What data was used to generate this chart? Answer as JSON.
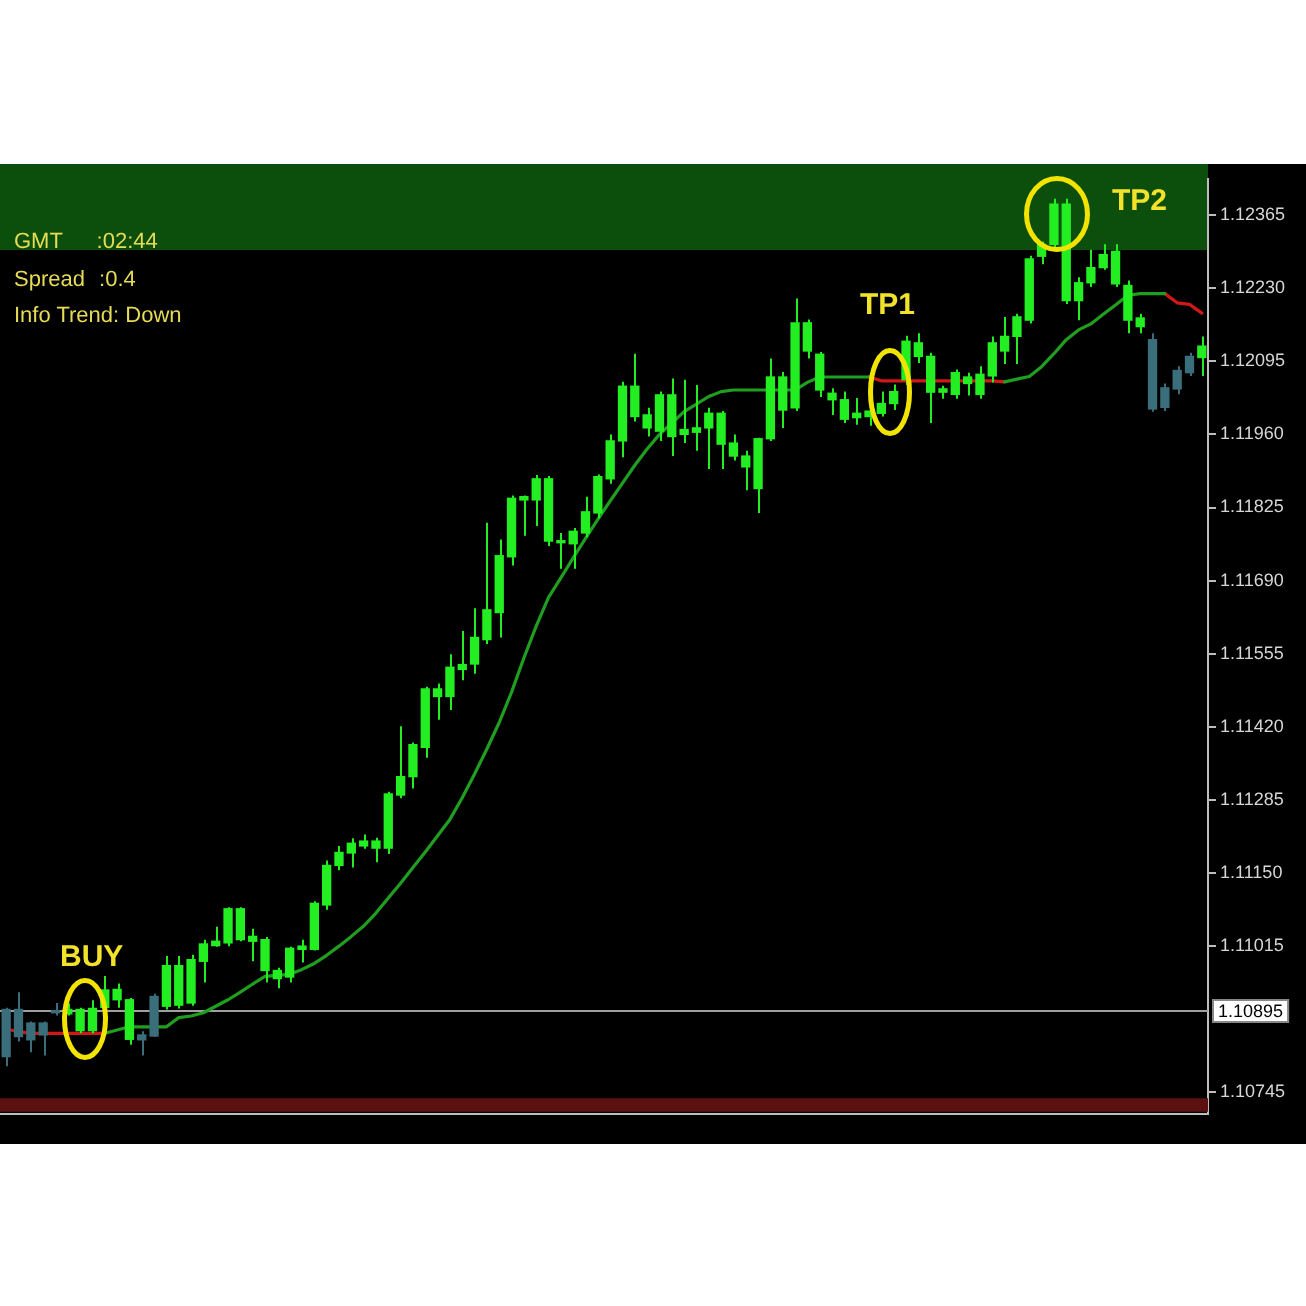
{
  "chart_data": {
    "type": "candlestick",
    "categories": [
      null,
      null,
      null,
      null,
      null,
      null,
      null,
      null,
      null,
      null,
      null,
      null,
      null,
      null,
      null,
      null,
      null,
      null,
      null,
      null,
      null,
      null,
      null,
      null,
      null,
      null,
      null,
      null,
      null,
      null,
      null,
      null,
      null,
      null,
      null,
      null,
      null,
      null,
      null,
      null,
      null,
      null,
      null,
      null,
      null,
      null,
      null,
      null,
      null,
      null,
      null,
      null,
      null,
      null,
      null,
      null,
      null,
      null,
      null,
      null,
      null,
      null,
      null,
      null,
      null,
      null,
      null,
      null,
      null,
      null,
      null,
      null,
      null,
      null,
      null,
      null,
      null,
      null,
      null,
      null,
      null,
      null,
      null,
      null,
      null,
      null,
      null,
      null,
      null,
      null,
      null,
      null,
      null,
      null,
      null,
      null,
      null,
      null
    ],
    "ohlc": [
      [
        1.10898,
        1.10901,
        1.10793,
        1.10811
      ],
      [
        1.10898,
        1.1093,
        1.10839,
        1.10848
      ],
      [
        1.10873,
        1.10876,
        1.10819,
        1.10842
      ],
      [
        1.10873,
        1.10876,
        1.10813,
        1.10851
      ],
      [
        1.10896,
        1.1091,
        1.10887,
        1.10892
      ],
      [
        1.1089,
        1.10909,
        1.10887,
        1.10898
      ],
      [
        1.10859,
        1.10901,
        1.10854,
        1.10898
      ],
      [
        1.10859,
        1.10915,
        1.10854,
        1.109
      ],
      [
        1.10902,
        1.1096,
        1.10894,
        1.10934
      ],
      [
        1.10916,
        1.10946,
        1.10901,
        1.10935
      ],
      [
        1.10843,
        1.10919,
        1.10833,
        1.10916
      ],
      [
        1.10851,
        1.10858,
        1.10813,
        1.10842
      ],
      [
        1.10922,
        1.10927,
        1.10847,
        1.10849
      ],
      [
        1.10904,
        1.10997,
        1.10898,
        1.10979
      ],
      [
        1.10906,
        1.10997,
        1.109,
        1.10979
      ],
      [
        1.1091,
        1.10999,
        1.10905,
        1.1099
      ],
      [
        1.10987,
        1.11027,
        1.10948,
        1.11019
      ],
      [
        1.11016,
        1.11051,
        1.11014,
        1.11024
      ],
      [
        1.11021,
        1.11087,
        1.11015,
        1.11084
      ],
      [
        1.11027,
        1.11087,
        1.11024,
        1.11084
      ],
      [
        1.11024,
        1.11047,
        1.10987,
        1.11033
      ],
      [
        1.1097,
        1.11032,
        1.10948,
        1.11027
      ],
      [
        1.10955,
        1.10975,
        1.10937,
        1.1097
      ],
      [
        1.10958,
        1.11014,
        1.10948,
        1.11011
      ],
      [
        1.11009,
        1.11027,
        1.10985,
        1.11015
      ],
      [
        1.11009,
        1.11098,
        1.11007,
        1.11094
      ],
      [
        1.11091,
        1.11173,
        1.11082,
        1.11164
      ],
      [
        1.11164,
        1.112,
        1.11155,
        1.11188
      ],
      [
        1.11187,
        1.11214,
        1.1116,
        1.11205
      ],
      [
        1.112,
        1.11221,
        1.11195,
        1.11209
      ],
      [
        1.11196,
        1.11215,
        1.1117,
        1.11209
      ],
      [
        1.11196,
        1.113,
        1.11185,
        1.11296
      ],
      [
        1.11294,
        1.11421,
        1.11288,
        1.11328
      ],
      [
        1.11328,
        1.11391,
        1.11306,
        1.11387
      ],
      [
        1.11382,
        1.11494,
        1.11363,
        1.1149
      ],
      [
        1.11476,
        1.115,
        1.11433,
        1.1149
      ],
      [
        1.11476,
        1.11554,
        1.11451,
        1.1153
      ],
      [
        1.11526,
        1.11597,
        1.11506,
        1.11535
      ],
      [
        1.11536,
        1.11639,
        1.11518,
        1.11585
      ],
      [
        1.11581,
        1.11797,
        1.11573,
        1.11636
      ],
      [
        1.11631,
        1.11766,
        1.11585,
        1.11736
      ],
      [
        1.11734,
        1.11847,
        1.11718,
        1.11842
      ],
      [
        1.11839,
        1.11847,
        1.11773,
        1.11845
      ],
      [
        1.11839,
        1.11885,
        1.11791,
        1.11878
      ],
      [
        1.11763,
        1.11883,
        1.11754,
        1.11878
      ],
      [
        1.1176,
        1.11778,
        1.11712,
        1.11763
      ],
      [
        1.11758,
        1.11787,
        1.11712,
        1.11781
      ],
      [
        1.11778,
        1.11845,
        1.1177,
        1.11817
      ],
      [
        1.11815,
        1.11886,
        1.11805,
        1.11882
      ],
      [
        1.11878,
        1.1196,
        1.11869,
        1.11948
      ],
      [
        1.11948,
        1.12057,
        1.11918,
        1.12049
      ],
      [
        1.11993,
        1.12109,
        1.11984,
        1.12049
      ],
      [
        1.11972,
        1.12009,
        1.11956,
        1.11996
      ],
      [
        1.11966,
        1.12039,
        1.11948,
        1.12033
      ],
      [
        1.11956,
        1.12063,
        1.1192,
        1.12033
      ],
      [
        1.1196,
        1.12061,
        1.11944,
        1.11969
      ],
      [
        1.11964,
        1.12051,
        1.1193,
        1.11972
      ],
      [
        1.11972,
        1.12009,
        1.11896,
        1.11999
      ],
      [
        1.11942,
        1.12003,
        1.11896,
        1.11999
      ],
      [
        1.1192,
        1.1196,
        1.11912,
        1.11944
      ],
      [
        1.119,
        1.1193,
        1.11857,
        1.1192
      ],
      [
        1.1186,
        1.11954,
        1.11815,
        1.11952
      ],
      [
        1.11952,
        1.121,
        1.11948,
        1.12066
      ],
      [
        1.12005,
        1.12075,
        1.11972,
        1.12066
      ],
      [
        1.12009,
        1.12211,
        1.12003,
        1.12166
      ],
      [
        1.12114,
        1.12172,
        1.121,
        1.12166
      ],
      [
        1.12042,
        1.12112,
        1.12029,
        1.12108
      ],
      [
        1.12024,
        1.12045,
        1.11996,
        1.12036
      ],
      [
        1.11988,
        1.12039,
        1.11981,
        1.12024
      ],
      [
        1.11991,
        1.12027,
        1.11978,
        1.11999
      ],
      [
        1.11993,
        1.12012,
        1.11976,
        1.12003
      ],
      [
        1.11999,
        1.12039,
        1.11993,
        1.12017
      ],
      [
        1.12017,
        1.12052,
        1.12005,
        1.12039
      ],
      [
        1.12061,
        1.12142,
        1.12051,
        1.12132
      ],
      [
        1.12104,
        1.12147,
        1.12092,
        1.12129
      ],
      [
        1.12038,
        1.12111,
        1.11981,
        1.12104
      ],
      [
        1.12038,
        1.1205,
        1.12026,
        1.12044
      ],
      [
        1.12034,
        1.1208,
        1.12026,
        1.12074
      ],
      [
        1.12054,
        1.12074,
        1.12032,
        1.12066
      ],
      [
        1.12034,
        1.12086,
        1.12026,
        1.12071
      ],
      [
        1.12068,
        1.12141,
        1.12056,
        1.12129
      ],
      [
        1.12114,
        1.12177,
        1.1209,
        1.12141
      ],
      [
        1.12141,
        1.12183,
        1.1209,
        1.12177
      ],
      [
        1.12171,
        1.1229,
        1.12165,
        1.12284
      ],
      [
        1.12289,
        1.12316,
        1.12274,
        1.12311
      ],
      [
        1.12311,
        1.12395,
        1.12298,
        1.12385
      ],
      [
        1.12207,
        1.12395,
        1.12201,
        1.12385
      ],
      [
        1.12207,
        1.1225,
        1.12171,
        1.1224
      ],
      [
        1.1224,
        1.12301,
        1.12232,
        1.12268
      ],
      [
        1.12268,
        1.12311,
        1.12264,
        1.12292
      ],
      [
        1.12238,
        1.12311,
        1.12232,
        1.12298
      ],
      [
        1.12171,
        1.12244,
        1.12147,
        1.12235
      ],
      [
        1.12159,
        1.12183,
        1.12147,
        1.12175
      ],
      [
        1.12135,
        1.12147,
        1.12002,
        1.12007
      ],
      [
        1.12046,
        1.12054,
        1.12003,
        1.1201
      ],
      [
        1.12078,
        1.12086,
        1.12034,
        1.12044
      ],
      [
        1.12104,
        1.12111,
        1.12068,
        1.12074
      ],
      [
        1.12102,
        1.12141,
        1.12068,
        1.12123
      ]
    ],
    "colors": [
      "#3a6e7a",
      "#3a6e7a",
      "#3a6e7a",
      "#3a6e7a",
      "#3a6e7a",
      "#22ee22",
      "#22ee22",
      "#22ee22",
      "#22ee22",
      "#22ee22",
      "#22ee22",
      "#3a6e7a",
      "#3a6e7a",
      "#22ee22",
      "#22ee22",
      "#22ee22",
      "#22ee22",
      "#22ee22",
      "#22ee22",
      "#22ee22",
      "#22ee22",
      "#22ee22",
      "#22ee22",
      "#22ee22",
      "#22ee22",
      "#22ee22",
      "#22ee22",
      "#22ee22",
      "#22ee22",
      "#22ee22",
      "#22ee22",
      "#22ee22",
      "#22ee22",
      "#22ee22",
      "#22ee22",
      "#22ee22",
      "#22ee22",
      "#22ee22",
      "#22ee22",
      "#22ee22",
      "#22ee22",
      "#22ee22",
      "#22ee22",
      "#22ee22",
      "#22ee22",
      "#22ee22",
      "#22ee22",
      "#22ee22",
      "#22ee22",
      "#22ee22",
      "#22ee22",
      "#22ee22",
      "#22ee22",
      "#22ee22",
      "#22ee22",
      "#22ee22",
      "#22ee22",
      "#22ee22",
      "#22ee22",
      "#22ee22",
      "#22ee22",
      "#22ee22",
      "#22ee22",
      "#22ee22",
      "#22ee22",
      "#22ee22",
      "#22ee22",
      "#22ee22",
      "#22ee22",
      "#22ee22",
      "#22ee22",
      "#22ee22",
      "#22ee22",
      "#22ee22",
      "#22ee22",
      "#22ee22",
      "#22ee22",
      "#22ee22",
      "#22ee22",
      "#22ee22",
      "#22ee22",
      "#22ee22",
      "#22ee22",
      "#22ee22",
      "#22ee22",
      "#22ee22",
      "#22ee22",
      "#22ee22",
      "#22ee22",
      "#22ee22",
      "#22ee22",
      "#22ee22",
      "#22ee22",
      "#3a6e7a",
      "#3a6e7a",
      "#3a6e7a",
      "#3a6e7a",
      "#22ee22"
    ],
    "series": [
      {
        "type": "line",
        "color": "#1f9e1f",
        "values": [
          null,
          null,
          null,
          null,
          null,
          null,
          null,
          null,
          1.10854,
          1.1086,
          1.10866,
          1.10866,
          1.10866,
          1.10866,
          1.10883,
          1.10886,
          1.10892,
          1.10904,
          1.10916,
          1.1093,
          1.10945,
          1.10959,
          1.10961,
          1.10963,
          1.10972,
          1.10983,
          1.10998,
          1.11015,
          1.11033,
          1.11052,
          1.11076,
          1.11104,
          1.11131,
          1.1116,
          1.11189,
          1.11219,
          1.11249,
          1.11289,
          1.11333,
          1.11379,
          1.11428,
          1.11484,
          1.11547,
          1.11606,
          1.11659,
          1.11695,
          1.11732,
          1.11768,
          1.11803,
          1.11837,
          1.1187,
          1.11903,
          1.11933,
          1.1196,
          1.11981,
          1.12002,
          1.12016,
          1.1203,
          1.12039,
          1.12042,
          1.12042,
          1.12042,
          1.12042,
          1.12042,
          1.12042,
          1.12056,
          1.12066,
          1.12066,
          1.12066,
          1.12066,
          1.12066,
          null,
          null,
          null,
          null,
          null,
          null,
          null,
          null,
          null,
          null,
          1.12057,
          1.12062,
          1.12067,
          1.12085,
          1.12109,
          1.12135,
          1.12153,
          1.12164,
          1.12182,
          1.12199,
          1.12217,
          1.1222,
          1.1222,
          1.1222,
          null,
          null,
          null
        ]
      },
      {
        "type": "line",
        "color": "#d01818",
        "values": [
          1.10862,
          1.10857,
          1.10854,
          1.10854,
          1.10854,
          1.10854,
          1.10854,
          1.10854,
          1.10854,
          null,
          null,
          null,
          null,
          null,
          null,
          null,
          null,
          null,
          null,
          null,
          null,
          null,
          null,
          null,
          null,
          null,
          null,
          null,
          null,
          null,
          null,
          null,
          null,
          null,
          null,
          null,
          null,
          null,
          null,
          null,
          null,
          null,
          null,
          null,
          null,
          null,
          null,
          null,
          null,
          null,
          null,
          null,
          null,
          null,
          null,
          null,
          null,
          null,
          null,
          null,
          null,
          null,
          null,
          null,
          null,
          null,
          null,
          null,
          null,
          null,
          1.12066,
          1.12059,
          1.12059,
          1.12059,
          1.12059,
          1.12059,
          1.12059,
          1.12059,
          1.12059,
          1.12059,
          1.12059,
          1.12057,
          null,
          null,
          null,
          null,
          null,
          null,
          null,
          null,
          null,
          null,
          null,
          null,
          1.1222,
          1.12203,
          1.122,
          1.12184
        ]
      }
    ],
    "ylim": [
      1.10705,
      1.12432
    ],
    "yticks": [
      1.10745,
      1.11015,
      {
        "value": 1.1115,
        "label": "1.11150"
      },
      1.11285,
      {
        "value": 1.1142,
        "label": "1.11420"
      },
      1.11555,
      {
        "value": 1.1169,
        "label": "1.11690"
      },
      1.11825,
      {
        "value": 1.1196,
        "label": "1.11960"
      },
      1.12095,
      {
        "value": 1.1223,
        "label": "1.12230"
      },
      1.12365
    ],
    "tick_labels": "y",
    "ref_lines": [
      {
        "axis": "y",
        "value": 1.10895,
        "label": "1.10895",
        "color": "#a0a0a0"
      }
    ],
    "bands": [
      {
        "axis": "y",
        "from": 1.10709,
        "to": 1.10734,
        "color": "#5c1010"
      }
    ],
    "annotations": [
      "GMT :02:44",
      "Spread :0.4",
      "Info Trend: Down",
      "BUY",
      "TP1",
      "TP2"
    ]
  }
}
